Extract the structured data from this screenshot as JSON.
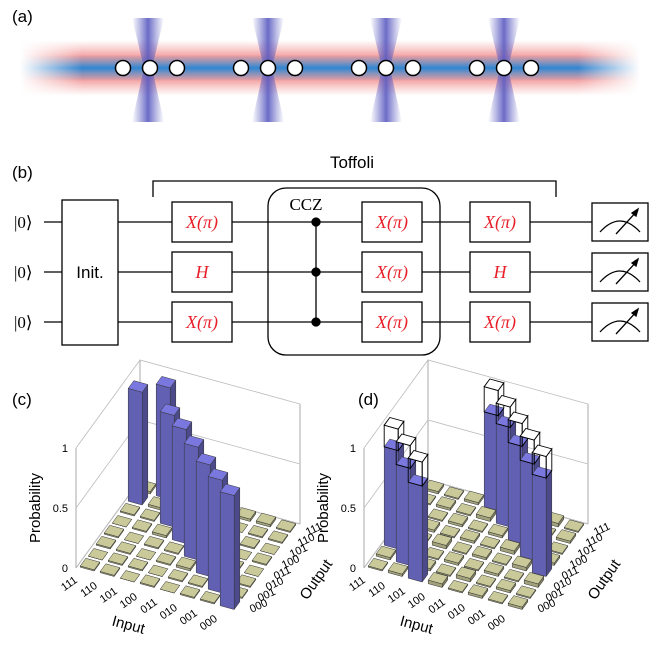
{
  "panel_labels": [
    "(a)",
    "(b)",
    "(c)",
    "(d)"
  ],
  "circuit": {
    "bracket_label": "Toffoli",
    "kets": [
      "|0⟩",
      "|0⟩",
      "|0⟩"
    ],
    "init": "Init.",
    "ccz_label": "CCZ",
    "gates": [
      [
        "X(π)",
        "H",
        "X(π)"
      ],
      [
        "X(π)",
        "X(π)",
        "X(π)"
      ],
      [
        "X(π)",
        "H",
        "X(π)"
      ]
    ]
  },
  "chart_data": [
    {
      "type": "bar3d",
      "x_label": "Input",
      "y_label": "Output",
      "z_label": "Probability",
      "inputs": [
        "000",
        "001",
        "010",
        "011",
        "100",
        "101",
        "110",
        "111"
      ],
      "outputs": [
        "000",
        "001",
        "010",
        "011",
        "100",
        "101",
        "110",
        "111"
      ],
      "zlim": [
        0,
        1
      ],
      "zticks": [
        0,
        0.5,
        1
      ],
      "colors": {
        "high": "#7a78de",
        "low": "#c9c99a"
      },
      "values": [
        [
          0.95,
          0.01,
          0.01,
          0.0,
          0.01,
          0.0,
          0.01,
          0.01
        ],
        [
          0.01,
          0.94,
          0.0,
          0.01,
          0.0,
          0.01,
          0.01,
          0.02
        ],
        [
          0.01,
          0.01,
          0.93,
          0.01,
          0.01,
          0.01,
          0.0,
          0.02
        ],
        [
          0.0,
          0.01,
          0.02,
          0.94,
          0.0,
          0.01,
          0.01,
          0.01
        ],
        [
          0.01,
          0.0,
          0.01,
          0.01,
          0.95,
          0.01,
          0.01,
          0.0
        ],
        [
          0.0,
          0.01,
          0.0,
          0.01,
          0.02,
          0.93,
          0.01,
          0.02
        ],
        [
          0.01,
          0.01,
          0.01,
          0.0,
          0.01,
          0.01,
          0.02,
          0.93
        ],
        [
          0.01,
          0.0,
          0.01,
          0.01,
          0.0,
          0.01,
          0.94,
          0.02
        ]
      ]
    },
    {
      "type": "bar3d",
      "x_label": "Input",
      "y_label": "Output",
      "z_label": "Probability",
      "inputs": [
        "000",
        "001",
        "010",
        "011",
        "100",
        "101",
        "110",
        "111"
      ],
      "outputs": [
        "000",
        "001",
        "010",
        "011",
        "100",
        "101",
        "110",
        "111"
      ],
      "zlim": [
        0,
        1
      ],
      "zticks": [
        0,
        0.5,
        1
      ],
      "colors": {
        "high": "#7a78de",
        "low": "#c9c99a"
      },
      "values": [
        [
          0.02,
          0.01,
          0.03,
          0.82,
          0.02,
          0.01,
          0.02,
          0.01
        ],
        [
          0.01,
          0.02,
          0.01,
          0.03,
          0.8,
          0.02,
          0.01,
          0.03
        ],
        [
          0.02,
          0.01,
          0.02,
          0.01,
          0.03,
          0.81,
          0.02,
          0.01
        ],
        [
          0.01,
          0.03,
          0.01,
          0.02,
          0.01,
          0.02,
          0.83,
          0.02
        ],
        [
          0.03,
          0.01,
          0.02,
          0.01,
          0.02,
          0.01,
          0.03,
          0.79
        ],
        [
          0.8,
          0.02,
          0.01,
          0.03,
          0.01,
          0.02,
          0.01,
          0.02
        ],
        [
          0.02,
          0.81,
          0.03,
          0.01,
          0.02,
          0.01,
          0.02,
          0.01
        ],
        [
          0.01,
          0.02,
          0.82,
          0.02,
          0.01,
          0.03,
          0.01,
          0.02
        ]
      ],
      "ideal": [
        [
          0,
          0,
          0,
          1,
          0,
          0,
          0,
          0
        ],
        [
          0,
          0,
          0,
          0,
          1,
          0,
          0,
          0
        ],
        [
          0,
          0,
          0,
          0,
          0,
          1,
          0,
          0
        ],
        [
          0,
          0,
          0,
          0,
          0,
          0,
          1,
          0
        ],
        [
          0,
          0,
          0,
          0,
          0,
          0,
          0,
          1
        ],
        [
          1,
          0,
          0,
          0,
          0,
          0,
          0,
          0
        ],
        [
          0,
          1,
          0,
          0,
          0,
          0,
          0,
          0
        ],
        [
          0,
          0,
          1,
          0,
          0,
          0,
          0,
          0
        ]
      ]
    }
  ]
}
